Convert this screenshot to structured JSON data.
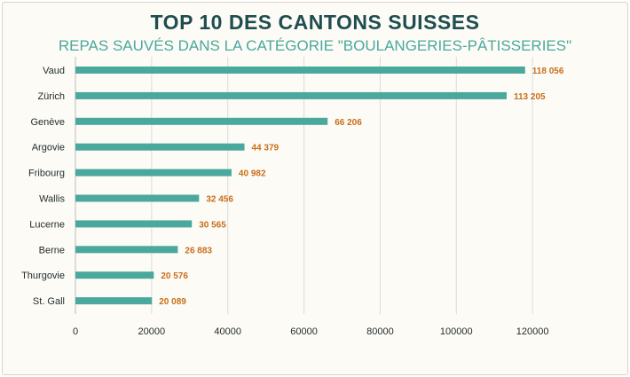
{
  "chart_data": {
    "type": "bar",
    "orientation": "horizontal",
    "title": "TOP 10 DES CANTONS SUISSES",
    "subtitle": "REPAS SAUVÉS DANS LA CATÉGORIE \"BOULANGERIES-PÂTISSERIES\"",
    "categories": [
      "Vaud",
      "Zürich",
      "Genève",
      "Argovie",
      "Fribourg",
      "Wallis",
      "Lucerne",
      "Berne",
      "Thurgovie",
      "St. Gall"
    ],
    "values": [
      118056,
      113205,
      66206,
      44379,
      40982,
      32456,
      30565,
      26883,
      20576,
      20089
    ],
    "data_labels": [
      "118 056",
      "113 205",
      "66 206",
      "44 379",
      "40 982",
      "32 456",
      "30 565",
      "26 883",
      "20 576",
      "20 089"
    ],
    "xlim": [
      0,
      140000
    ],
    "xticks": [
      0,
      20000,
      40000,
      60000,
      80000,
      100000,
      120000
    ],
    "xtick_labels": [
      "0",
      "20000",
      "40000",
      "60000",
      "80000",
      "100000",
      "120000"
    ],
    "grid": true,
    "legend": "none",
    "colors": {
      "bar": "#4aa89c",
      "data_label": "#c86e1a",
      "title": "#1f4e50",
      "subtitle": "#4aa89c",
      "grid": "#dcdcdc",
      "axis_text": "#1f2a2a"
    }
  }
}
